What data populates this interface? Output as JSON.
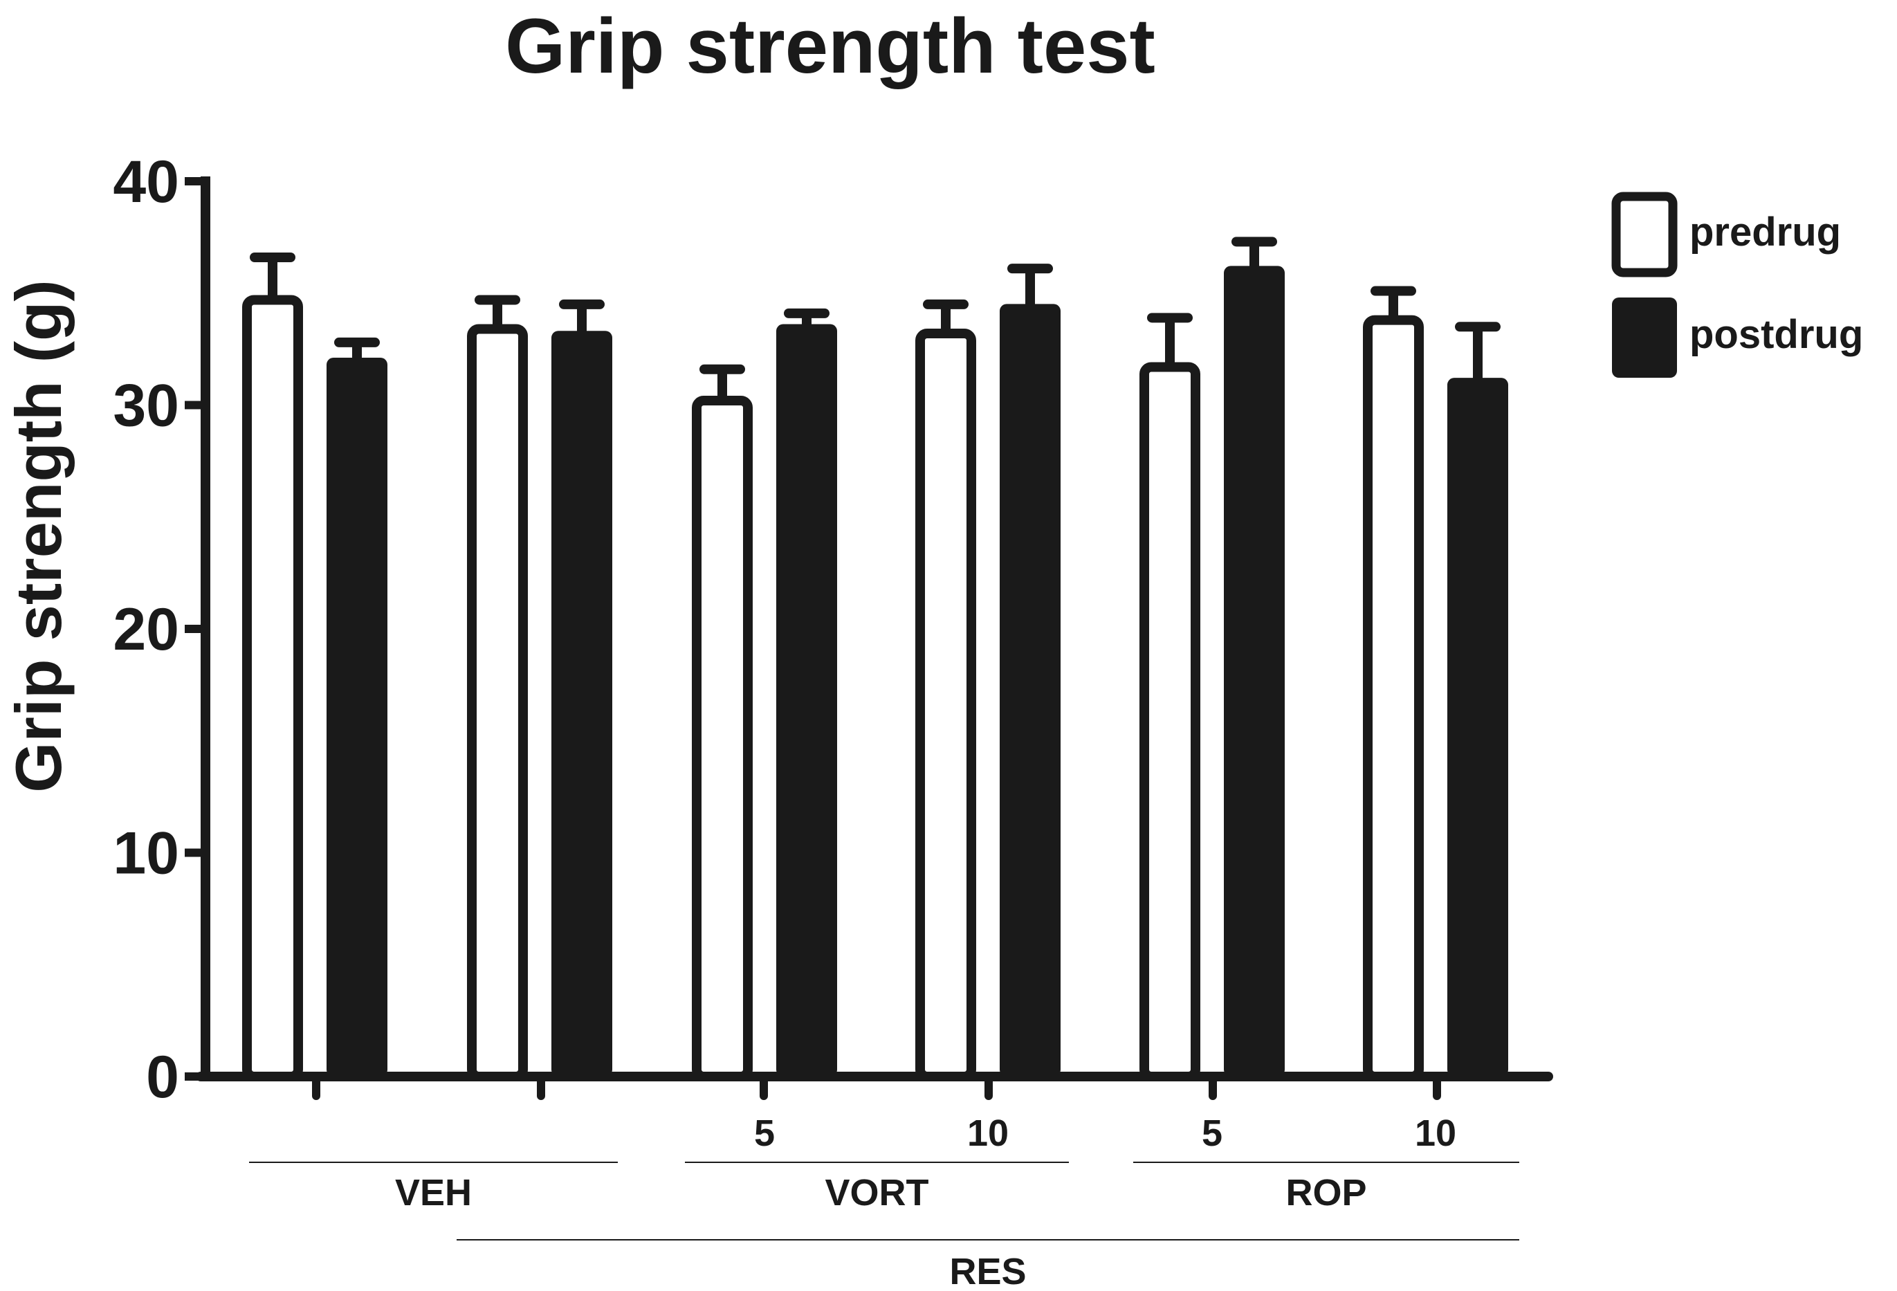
{
  "chart_data": {
    "type": "bar",
    "title": "Grip strength test",
    "ylabel": "Grip strength (g)",
    "xlabel": "",
    "ylim": [
      0,
      40
    ],
    "yticks": [
      "0",
      "10",
      "20",
      "30",
      "40"
    ],
    "grid": false,
    "legend_position": "top-right",
    "categories": [
      "VEH",
      "RES + VEH",
      "RES + VORT 5",
      "RES + VORT 10",
      "RES + ROP 5",
      "RES + ROP 10"
    ],
    "dose_labels": [
      "",
      "",
      "5",
      "10",
      "5",
      "10"
    ],
    "series": [
      {
        "name": "predrug",
        "style": "open",
        "values": [
          34.7,
          33.4,
          30.2,
          33.2,
          31.7,
          33.8
        ],
        "error": [
          1.9,
          1.3,
          1.4,
          1.3,
          2.2,
          1.3
        ]
      },
      {
        "name": "postdrug",
        "style": "filled",
        "values": [
          31.9,
          33.1,
          33.4,
          34.3,
          36.0,
          31.0
        ],
        "error": [
          0.9,
          1.4,
          0.7,
          1.8,
          1.3,
          2.5
        ]
      }
    ],
    "group_labels": {
      "veh": "VEH",
      "vort": "VORT",
      "rop": "ROP",
      "res": "RES"
    },
    "colors": {
      "ink": "#1a1a1a",
      "open_fill": "#ffffff"
    }
  }
}
